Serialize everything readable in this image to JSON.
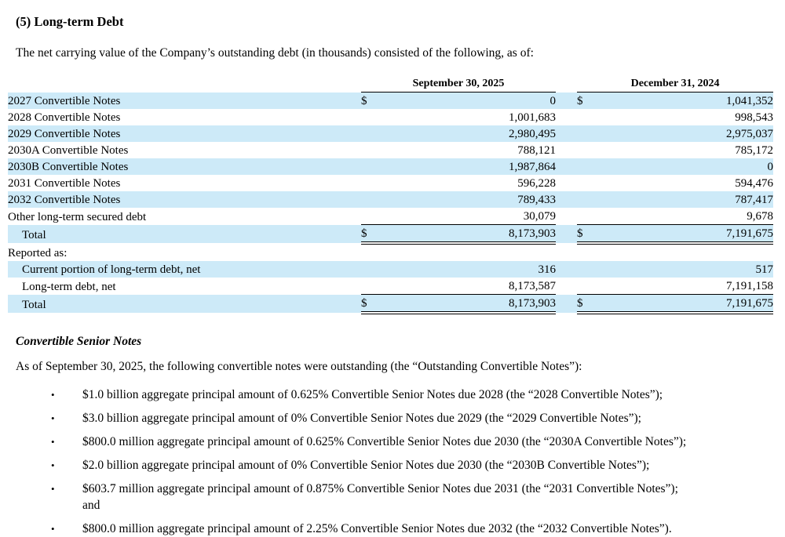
{
  "page": {
    "title": "(5) Long-term Debt",
    "intro": "The net carrying value of the Company’s outstanding debt (in thousands) consisted of the following, as of:"
  },
  "table": {
    "columns": [
      "September 30, 2025",
      "December 31, 2024"
    ],
    "rows": [
      {
        "label": "2027 Convertible Notes",
        "d1": "$",
        "v1": "0",
        "d2": "$",
        "v2": "1,041,352",
        "shade": true
      },
      {
        "label": "2028 Convertible Notes",
        "d1": "",
        "v1": "1,001,683",
        "d2": "",
        "v2": "998,543",
        "shade": false
      },
      {
        "label": "2029 Convertible Notes",
        "d1": "",
        "v1": "2,980,495",
        "d2": "",
        "v2": "2,975,037",
        "shade": true
      },
      {
        "label": "2030A Convertible Notes",
        "d1": "",
        "v1": "788,121",
        "d2": "",
        "v2": "785,172",
        "shade": false
      },
      {
        "label": "2030B Convertible Notes",
        "d1": "",
        "v1": "1,987,864",
        "d2": "",
        "v2": "0",
        "shade": true
      },
      {
        "label": "2031 Convertible Notes",
        "d1": "",
        "v1": "596,228",
        "d2": "",
        "v2": "594,476",
        "shade": false
      },
      {
        "label": "2032 Convertible Notes",
        "d1": "",
        "v1": "789,433",
        "d2": "",
        "v2": "787,417",
        "shade": true
      },
      {
        "label": "Other long-term secured debt",
        "d1": "",
        "v1": "30,079",
        "d2": "",
        "v2": "9,678",
        "shade": false,
        "line": "single"
      },
      {
        "label": "Total",
        "d1": "$",
        "v1": "8,173,903",
        "d2": "$",
        "v2": "7,191,675",
        "shade": true,
        "indent": true,
        "line": "double"
      },
      {
        "label": "Reported as:",
        "d1": "",
        "v1": "",
        "d2": "",
        "v2": "",
        "shade": false
      },
      {
        "label": "Current portion of long-term debt, net",
        "d1": "",
        "v1": "316",
        "d2": "",
        "v2": "517",
        "shade": true,
        "indent": true
      },
      {
        "label": "Long-term debt, net",
        "d1": "",
        "v1": "8,173,587",
        "d2": "",
        "v2": "7,191,158",
        "shade": false,
        "indent": true,
        "line": "single"
      },
      {
        "label": "Total",
        "d1": "$",
        "v1": "8,173,903",
        "d2": "$",
        "v2": "7,191,675",
        "shade": true,
        "indent": true,
        "line": "double"
      }
    ]
  },
  "subsection": {
    "title": "Convertible Senior Notes",
    "intro": "As of September 30, 2025, the following convertible notes were outstanding (the “Outstanding Convertible Notes”):",
    "bullet_icon": "•",
    "bullets": [
      [
        "$1.0 billion aggregate principal amount of 0.625% Convertible Senior Notes due 2028 (the “2028 Convertible Notes”);"
      ],
      [
        "$3.0 billion aggregate principal amount of 0% Convertible Senior Notes due 2029 (the “2029 Convertible Notes”);"
      ],
      [
        "$800.0 million aggregate principal amount of 0.625% Convertible Senior Notes due 2030 (the “2030A Convertible Notes”);"
      ],
      [
        "$2.0 billion aggregate principal amount of 0% Convertible Senior Notes due 2030 (the “2030B Convertible Notes”);"
      ],
      [
        "$603.7 million aggregate principal amount of 0.875% Convertible Senior Notes due 2031 (the “2031 Convertible Notes”);",
        "and"
      ],
      [
        "$800.0 million aggregate principal amount of 2.25% Convertible Senior Notes due 2032 (the “2032 Convertible Notes”)."
      ]
    ]
  },
  "colors": {
    "row_stripe": "#cdeaf8",
    "text": "#000000",
    "background": "#ffffff"
  }
}
